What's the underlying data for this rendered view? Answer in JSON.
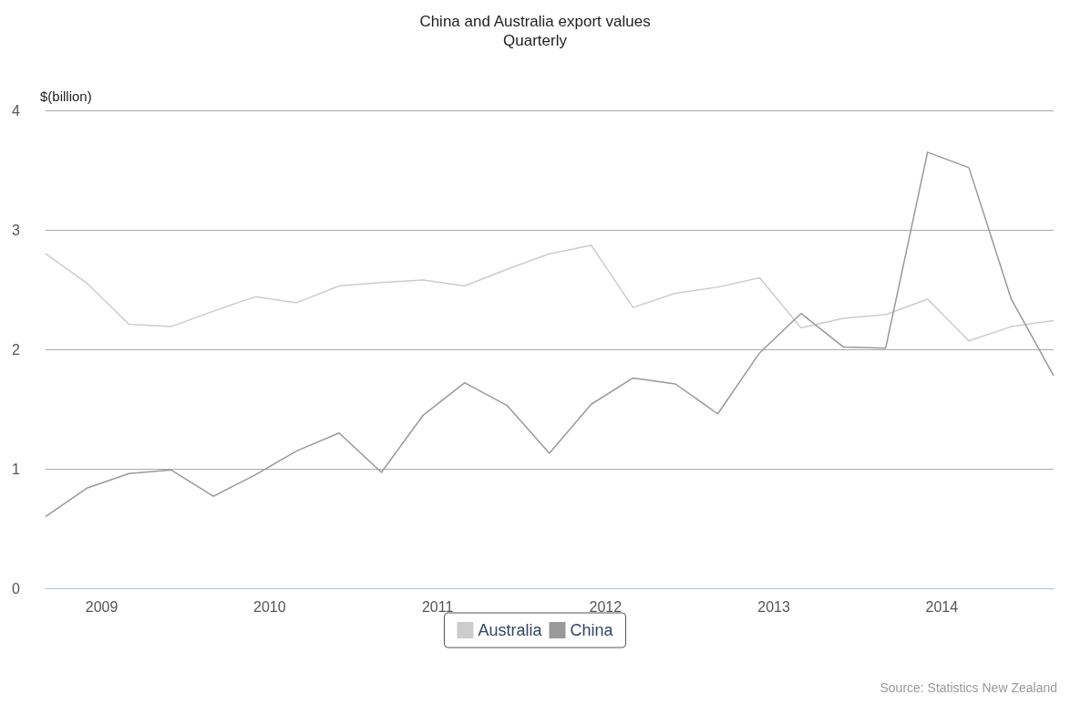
{
  "chart_data": {
    "type": "line",
    "title": "China and Australia export values",
    "subtitle": "Quarterly",
    "ylabel": "$(billion)",
    "x": [
      "2008-09",
      "2008-12",
      "2009-03",
      "2009-06",
      "2009-09",
      "2009-12",
      "2010-03",
      "2010-06",
      "2010-09",
      "2010-12",
      "2011-03",
      "2011-06",
      "2011-09",
      "2011-12",
      "2012-03",
      "2012-06",
      "2012-09",
      "2012-12",
      "2013-03",
      "2013-06",
      "2013-09",
      "2013-12",
      "2014-03",
      "2014-06",
      "2014-09"
    ],
    "series": [
      {
        "name": "Australia",
        "color": "#cccccc",
        "values": [
          2.8,
          2.55,
          2.21,
          2.19,
          2.32,
          2.44,
          2.39,
          2.53,
          2.56,
          2.58,
          2.53,
          2.67,
          2.8,
          2.87,
          2.35,
          2.47,
          2.52,
          2.6,
          2.18,
          2.26,
          2.29,
          2.42,
          2.07,
          2.19,
          2.24
        ]
      },
      {
        "name": "China",
        "color": "#999999",
        "values": [
          0.6,
          0.84,
          0.96,
          0.99,
          0.77,
          0.95,
          1.15,
          1.3,
          0.97,
          1.45,
          1.72,
          1.53,
          1.13,
          1.54,
          1.76,
          1.71,
          1.46,
          1.97,
          2.3,
          2.02,
          2.01,
          3.65,
          3.52,
          2.42,
          1.78
        ]
      }
    ],
    "xlim": [
      "2008-09",
      "2014-09"
    ],
    "xticks": [
      "2009",
      "2010",
      "2011",
      "2012",
      "2013",
      "2014"
    ],
    "ylim": [
      0,
      4
    ],
    "yticks": [
      0,
      1,
      2,
      3,
      4
    ],
    "grid": "y",
    "legend": "bottom",
    "marker": "none",
    "line_style": "solid",
    "annotations": [
      "Source: Statistics New Zealand"
    ]
  }
}
